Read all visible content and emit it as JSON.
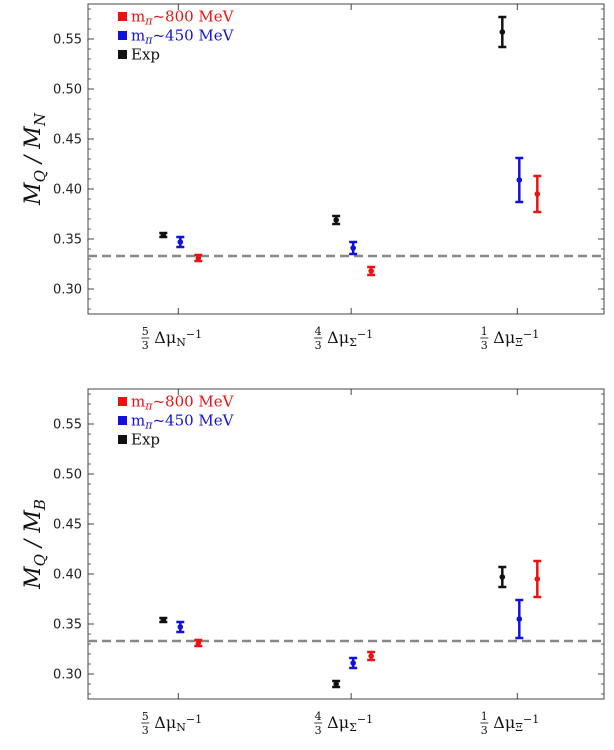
{
  "chart_data": [
    {
      "type": "errorbar",
      "ylabel": {
        "main": "M",
        "sub1": "Q",
        "sep": " / M",
        "sub2": "N"
      },
      "ylim": [
        0.275,
        0.585
      ],
      "yticks": [
        "0.30",
        "0.35",
        "0.40",
        "0.45",
        "0.50",
        "0.55"
      ],
      "reference_line": 0.333,
      "categories": [
        {
          "num": "5",
          "den": "3",
          "sym": "Δμ",
          "sub": "N",
          "sup": "−1"
        },
        {
          "num": "4",
          "den": "3",
          "sym": "Δμ",
          "sub": "Σ",
          "sup": "−1"
        },
        {
          "num": "1",
          "den": "3",
          "sym": "Δμ",
          "sub": "Ξ",
          "sup": "−1"
        }
      ],
      "legend": [
        {
          "name": "m",
          "sub": "π",
          "rest": "~800 MeV",
          "color": "#ee1111"
        },
        {
          "name": "m",
          "sub": "π",
          "rest": "~450 MeV",
          "color": "#1111dd"
        },
        {
          "name": "Exp",
          "sub": "",
          "rest": "",
          "color": "#111111"
        }
      ],
      "series": [
        {
          "color": "#111111",
          "points": [
            {
              "v": 0.354,
              "e": 0.002
            },
            {
              "v": 0.369,
              "e": 0.004
            },
            {
              "v": 0.557,
              "e": 0.015
            }
          ]
        },
        {
          "color": "#1111dd",
          "points": [
            {
              "v": 0.347,
              "e": 0.005
            },
            {
              "v": 0.341,
              "e": 0.006
            },
            {
              "v": 0.409,
              "e": 0.022
            }
          ]
        },
        {
          "color": "#ee1111",
          "points": [
            {
              "v": 0.331,
              "e": 0.003
            },
            {
              "v": 0.318,
              "e": 0.004
            },
            {
              "v": 0.395,
              "e": 0.018
            }
          ]
        }
      ]
    },
    {
      "type": "errorbar",
      "ylabel": {
        "main": "M",
        "sub1": "Q",
        "sep": " / M",
        "sub2": "B"
      },
      "ylim": [
        0.275,
        0.585
      ],
      "yticks": [
        "0.30",
        "0.35",
        "0.40",
        "0.45",
        "0.50",
        "0.55"
      ],
      "reference_line": 0.333,
      "categories": [
        {
          "num": "5",
          "den": "3",
          "sym": "Δμ",
          "sub": "N",
          "sup": "−1"
        },
        {
          "num": "4",
          "den": "3",
          "sym": "Δμ",
          "sub": "Σ",
          "sup": "−1"
        },
        {
          "num": "1",
          "den": "3",
          "sym": "Δμ",
          "sub": "Ξ",
          "sup": "−1"
        }
      ],
      "legend": [
        {
          "name": "m",
          "sub": "π",
          "rest": "~800 MeV",
          "color": "#ee1111"
        },
        {
          "name": "m",
          "sub": "π",
          "rest": "~450 MeV",
          "color": "#1111dd"
        },
        {
          "name": "Exp",
          "sub": "",
          "rest": "",
          "color": "#111111"
        }
      ],
      "series": [
        {
          "color": "#111111",
          "points": [
            {
              "v": 0.354,
              "e": 0.002
            },
            {
              "v": 0.29,
              "e": 0.003
            },
            {
              "v": 0.397,
              "e": 0.01
            }
          ]
        },
        {
          "color": "#1111dd",
          "points": [
            {
              "v": 0.347,
              "e": 0.005
            },
            {
              "v": 0.311,
              "e": 0.005
            },
            {
              "v": 0.355,
              "e": 0.019
            }
          ]
        },
        {
          "color": "#ee1111",
          "points": [
            {
              "v": 0.331,
              "e": 0.003
            },
            {
              "v": 0.318,
              "e": 0.004
            },
            {
              "v": 0.395,
              "e": 0.018
            }
          ]
        }
      ]
    }
  ]
}
